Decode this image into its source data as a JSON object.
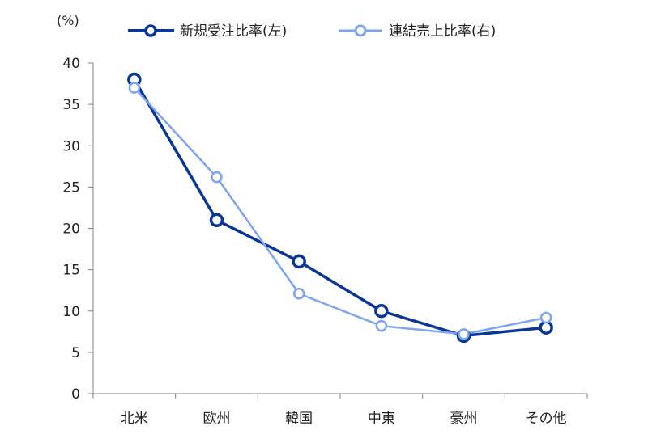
{
  "chart_data": {
    "type": "line",
    "unit_label": "(%)",
    "categories": [
      "北米",
      "欧州",
      "韓国",
      "中東",
      "豪州",
      "その他"
    ],
    "ylim": [
      0,
      40
    ],
    "yticks": [
      "0",
      "5",
      "10",
      "15",
      "20",
      "25",
      "30",
      "35",
      "40"
    ],
    "legend_position": "top",
    "grid": false,
    "series": [
      {
        "name": "新規受注比率(左)",
        "color": "#0a3796",
        "values": [
          38,
          21,
          16,
          10,
          7,
          8
        ]
      },
      {
        "name": "連結売上比率(右)",
        "color": "#7ea3ef",
        "values": [
          37,
          26.2,
          12.1,
          8.2,
          7.2,
          9.2
        ]
      }
    ]
  }
}
